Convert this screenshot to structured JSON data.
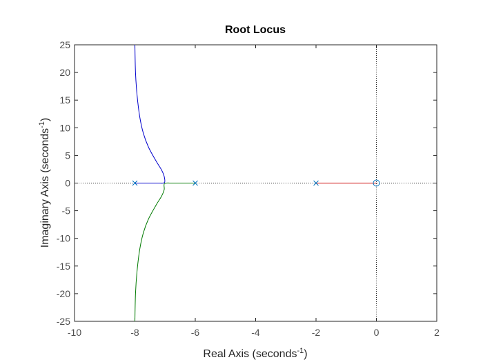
{
  "chart_data": {
    "type": "line",
    "title": "Root Locus",
    "xlabel": {
      "text": "Real Axis (seconds",
      "sup": "-1",
      "close": ")"
    },
    "ylabel": {
      "text": "Imaginary Axis (seconds",
      "sup": "-1",
      "close": ")"
    },
    "xlim": [
      -10,
      2
    ],
    "ylim": [
      -25,
      25
    ],
    "xticks": [
      "-10",
      "-8",
      "-6",
      "-4",
      "-2",
      "0",
      "2"
    ],
    "yticks": [
      "-25",
      "-20",
      "-15",
      "-10",
      "-5",
      "0",
      "5",
      "10",
      "15",
      "20",
      "25"
    ],
    "grid": false,
    "reference_lines": {
      "real_axis": 0,
      "imag_axis": 0,
      "style": "dotted"
    },
    "poles": [
      [
        -8,
        0
      ],
      [
        -6,
        0
      ],
      [
        -2,
        0
      ]
    ],
    "zeros": [
      [
        0,
        0
      ]
    ],
    "series": [
      {
        "color": "#0000cc",
        "points": [
          [
            -8,
            0
          ],
          [
            -7.6,
            0
          ],
          [
            -7.2,
            0
          ],
          [
            -7.02,
            0.1
          ],
          [
            -7.03,
            1.2
          ],
          [
            -7.12,
            2.4
          ],
          [
            -7.3,
            4
          ],
          [
            -7.55,
            6.5
          ],
          [
            -7.72,
            9
          ],
          [
            -7.84,
            12
          ],
          [
            -7.93,
            16
          ],
          [
            -7.98,
            20
          ],
          [
            -8.0,
            25
          ]
        ]
      },
      {
        "color": "#007a00",
        "points": [
          [
            -6,
            0
          ],
          [
            -6.4,
            0
          ],
          [
            -6.8,
            0
          ],
          [
            -7.02,
            -0.1
          ],
          [
            -7.03,
            -1.2
          ],
          [
            -7.12,
            -2.4
          ],
          [
            -7.3,
            -4
          ],
          [
            -7.55,
            -6.5
          ],
          [
            -7.72,
            -9
          ],
          [
            -7.84,
            -12
          ],
          [
            -7.93,
            -16
          ],
          [
            -7.98,
            -20
          ],
          [
            -8.0,
            -25
          ]
        ]
      },
      {
        "color": "#cc0000",
        "points": [
          [
            -2,
            0
          ],
          [
            0,
            0
          ]
        ]
      }
    ],
    "marker_color": "#0072bd",
    "axis_color": "#262626"
  }
}
